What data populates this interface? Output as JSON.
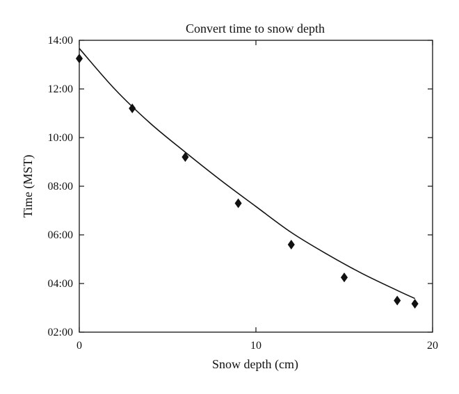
{
  "chart_data": {
    "type": "scatter",
    "title": "Convert time to snow depth",
    "xlabel": "Snow depth (cm)",
    "ylabel": "Time (MST)",
    "xlim": [
      0,
      20
    ],
    "ylim": [
      "02:00",
      "14:00"
    ],
    "x_ticks": [
      0,
      10,
      20
    ],
    "y_ticks": [
      "02:00",
      "04:00",
      "06:00",
      "08:00",
      "10:00",
      "12:00",
      "14:00"
    ],
    "grid": false,
    "legend": "none",
    "series": [
      {
        "marker": "diamond",
        "points": [
          {
            "x": 0,
            "y": "13:15"
          },
          {
            "x": 3,
            "y": "11:12"
          },
          {
            "x": 6,
            "y": "09:12"
          },
          {
            "x": 9,
            "y": "07:18"
          },
          {
            "x": 12,
            "y": "05:36"
          },
          {
            "x": 15,
            "y": "04:15"
          },
          {
            "x": 18,
            "y": "03:18"
          },
          {
            "x": 19,
            "y": "03:10"
          }
        ]
      }
    ],
    "fit_curve": {
      "style": "line",
      "points": [
        {
          "x": 0,
          "y": "13:40"
        },
        {
          "x": 2,
          "y": "12:00"
        },
        {
          "x": 4,
          "y": "10:36"
        },
        {
          "x": 6,
          "y": "09:24"
        },
        {
          "x": 8,
          "y": "08:15"
        },
        {
          "x": 10,
          "y": "07:10"
        },
        {
          "x": 12,
          "y": "06:06"
        },
        {
          "x": 14,
          "y": "05:13"
        },
        {
          "x": 16,
          "y": "04:25"
        },
        {
          "x": 18,
          "y": "03:43"
        },
        {
          "x": 19,
          "y": "03:23"
        }
      ]
    }
  }
}
